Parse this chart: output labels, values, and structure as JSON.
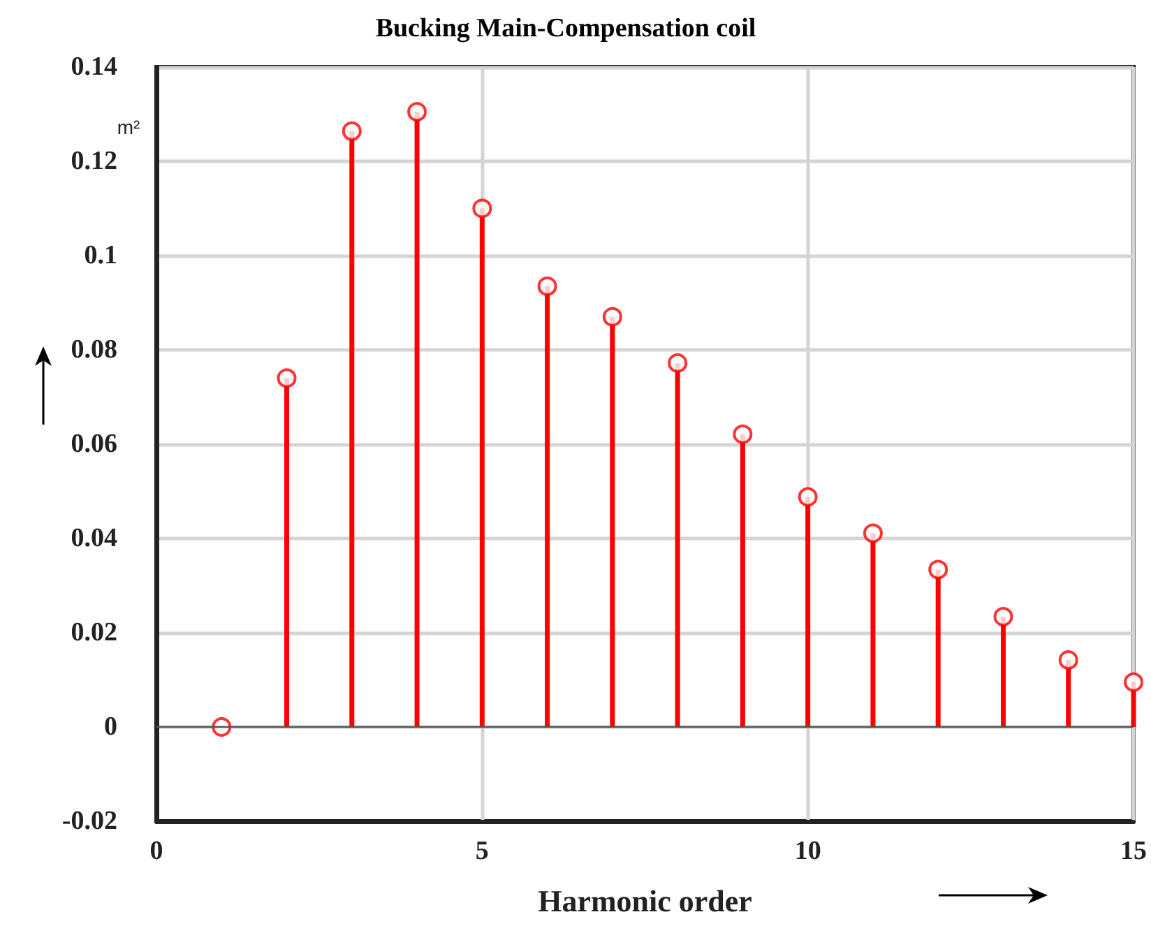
{
  "chart_data": {
    "type": "lollipop",
    "title": "Bucking Main-Compensation coil",
    "xlabel": "Harmonic order",
    "ylabel": "m²",
    "x": [
      1,
      2,
      3,
      4,
      5,
      6,
      7,
      8,
      9,
      10,
      11,
      12,
      13,
      14,
      15
    ],
    "values": [
      0,
      0.074,
      0.1264,
      0.1305,
      0.11,
      0.0935,
      0.087,
      0.0772,
      0.0621,
      0.0488,
      0.0411,
      0.0334,
      0.0234,
      0.0142,
      0.0095
    ],
    "color": "#ff0000",
    "marker": "circle",
    "xlim": [
      0,
      15
    ],
    "xticks": [
      0,
      5,
      10,
      15
    ],
    "ylim": [
      -0.02,
      0.14
    ],
    "yticks": [
      -0.02,
      0,
      0.02,
      0.04,
      0.06,
      0.08,
      0.1,
      0.12,
      0.14
    ],
    "ref_lines": [
      {
        "axis": "y",
        "value": 0,
        "color": "#555555"
      }
    ],
    "grid": true
  }
}
